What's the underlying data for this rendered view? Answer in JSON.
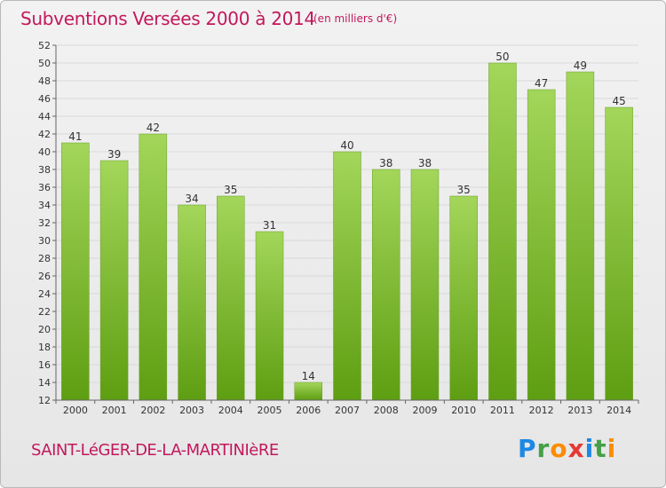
{
  "header": {
    "title": "Subventions Versées 2000 à 2014",
    "unit_note": "(en milliers d'€)"
  },
  "footer": {
    "place_name": "SAINT-LéGER-DE-LA-MARTINIèRE",
    "logo_letters": [
      "P",
      "r",
      "o",
      "x",
      "i",
      "t",
      "i"
    ],
    "logo_colors": [
      "#1e88e5",
      "#43a047",
      "#fb8c00",
      "#e53935",
      "#1e88e5",
      "#43a047",
      "#fb8c00"
    ]
  },
  "colors": {
    "title": "#c2185b",
    "bar_top": "#a3d65a",
    "bar_bottom": "#5e9e12",
    "grid": "#d9d9d9",
    "axis": "#666666"
  },
  "chart_data": {
    "type": "bar",
    "title": "Subventions Versées 2000 à 2014",
    "subtitle": "(en milliers d'€)",
    "categories": [
      "2000",
      "2001",
      "2002",
      "2003",
      "2004",
      "2005",
      "2006",
      "2007",
      "2008",
      "2009",
      "2010",
      "2011",
      "2012",
      "2013",
      "2014"
    ],
    "values": [
      41,
      39,
      42,
      34,
      35,
      31,
      14,
      40,
      38,
      38,
      35,
      50,
      47,
      49,
      45
    ],
    "ylim": [
      12,
      52
    ],
    "yticks": [
      12,
      14,
      16,
      18,
      20,
      22,
      24,
      26,
      28,
      30,
      32,
      34,
      36,
      38,
      40,
      42,
      44,
      46,
      48,
      50,
      52
    ],
    "grid": true,
    "data_labels": true
  }
}
